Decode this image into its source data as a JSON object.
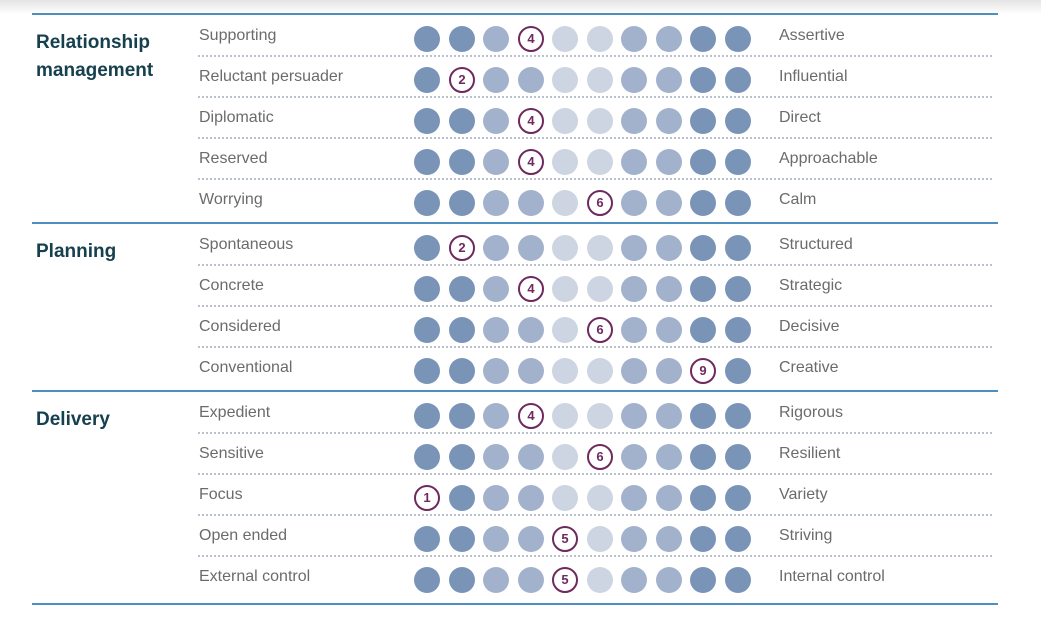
{
  "colors": {
    "section_line": "#4f8fbf",
    "section_title": "#17404e",
    "label_text": "#6b6b6b",
    "marker": "#6e2a5e",
    "dot_scale": [
      "#7a94b8",
      "#7a94b8",
      "#a3b2cc",
      "#a3b2cc",
      "#cdd4e2",
      "#cdd4e2",
      "#a3b2cc",
      "#a3b2cc",
      "#7a94b8",
      "#7a94b8"
    ]
  },
  "chart_data": {
    "type": "table",
    "scale": [
      1,
      10
    ],
    "sections": [
      {
        "title": "Relationship management",
        "rows": [
          {
            "left": "Supporting",
            "right": "Assertive",
            "score": 4
          },
          {
            "left": "Reluctant persuader",
            "right": "Influential",
            "score": 2
          },
          {
            "left": "Diplomatic",
            "right": "Direct",
            "score": 4
          },
          {
            "left": "Reserved",
            "right": "Approachable",
            "score": 4
          },
          {
            "left": "Worrying",
            "right": "Calm",
            "score": 6
          }
        ]
      },
      {
        "title": "Planning",
        "rows": [
          {
            "left": "Spontaneous",
            "right": "Structured",
            "score": 2
          },
          {
            "left": "Concrete",
            "right": "Strategic",
            "score": 4
          },
          {
            "left": "Considered",
            "right": "Decisive",
            "score": 6
          },
          {
            "left": "Conventional",
            "right": "Creative",
            "score": 9
          }
        ]
      },
      {
        "title": "Delivery",
        "rows": [
          {
            "left": "Expedient",
            "right": "Rigorous",
            "score": 4
          },
          {
            "left": "Sensitive",
            "right": "Resilient",
            "score": 6
          },
          {
            "left": "Focus",
            "right": "Variety",
            "score": 1
          },
          {
            "left": "Open ended",
            "right": "Striving",
            "score": 5
          },
          {
            "left": "External control",
            "right": "Internal control",
            "score": 5
          }
        ]
      }
    ]
  }
}
